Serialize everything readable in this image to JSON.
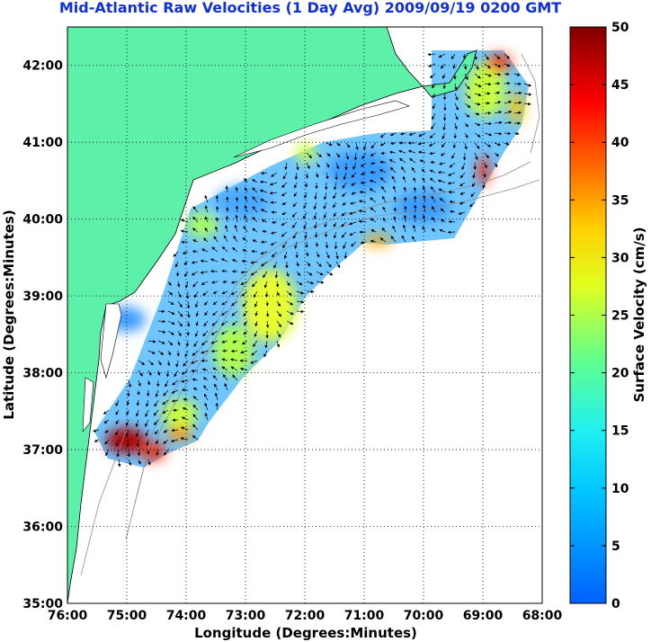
{
  "title": "Mid-Atlantic Raw Velocities (1 Day Avg) 2009/09/19 0200 GMT",
  "map": {
    "xlabel": "Longitude (Degrees:Minutes)",
    "ylabel": "Latitude (Degrees:Minutes)",
    "lon_range": [
      -76,
      -68
    ],
    "lat_range": [
      35,
      42.5
    ],
    "x_ticks": [
      "76:00",
      "75:00",
      "74:00",
      "73:00",
      "72:00",
      "71:00",
      "70:00",
      "69:00",
      "68:00"
    ],
    "y_ticks": [
      "35:00",
      "36:00",
      "37:00",
      "38:00",
      "39:00",
      "40:00",
      "41:00",
      "42:00"
    ],
    "land_color": "#5cf0a8",
    "grid": "dotted"
  },
  "colorbar": {
    "label": "Surface Velocity (cm/s)",
    "range": [
      0,
      50
    ],
    "ticks": [
      "0",
      "5",
      "10",
      "15",
      "20",
      "25",
      "30",
      "35",
      "40",
      "45",
      "50"
    ]
  }
}
